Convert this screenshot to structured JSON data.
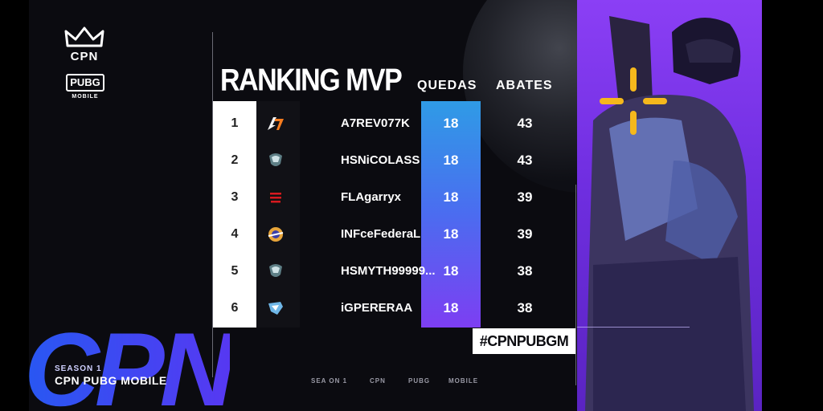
{
  "branding": {
    "cpn_logo_text": "CPN",
    "pubg_logo_text": "PUBG",
    "pubg_logo_sub": "MOBILE",
    "deco_text": "CPN",
    "season_label": "SEASON 1",
    "season_name": "CPN PUBG MOBILE"
  },
  "table": {
    "title": "RANKING MVP",
    "col_quedas": "QUEDAS",
    "col_abates": "ABATES",
    "rows": [
      {
        "rank": "1",
        "player": "A7REV077K",
        "quedas": "18",
        "abates": "43",
        "logo_icon": "a7-team-logo-icon"
      },
      {
        "rank": "2",
        "player": "HSNiCOLASS",
        "quedas": "18",
        "abates": "43",
        "logo_icon": "hs-team-logo-icon"
      },
      {
        "rank": "3",
        "player": "FLAgarryx",
        "quedas": "18",
        "abates": "39",
        "logo_icon": "flamengo-shield-icon"
      },
      {
        "rank": "4",
        "player": "INFceFederaL",
        "quedas": "18",
        "abates": "39",
        "logo_icon": "inf-team-logo-icon"
      },
      {
        "rank": "5",
        "player": "HSMYTH99999...",
        "quedas": "18",
        "abates": "38",
        "logo_icon": "hs-team-logo-icon"
      },
      {
        "rank": "6",
        "player": "iGPERERAA",
        "quedas": "18",
        "abates": "38",
        "logo_icon": "ig-team-logo-icon"
      }
    ]
  },
  "hashtag": "#CPNPUBGM",
  "footer": {
    "item1": "SEA  ON 1",
    "item2": "CPN",
    "item3": "PUBG",
    "item4": "MOBILE"
  },
  "colors": {
    "accent_blue": "#2f9be6",
    "accent_purple": "#7d3ef2",
    "panel_purple": "#8b3ff5",
    "crosshair_yellow": "#f5b81c"
  }
}
